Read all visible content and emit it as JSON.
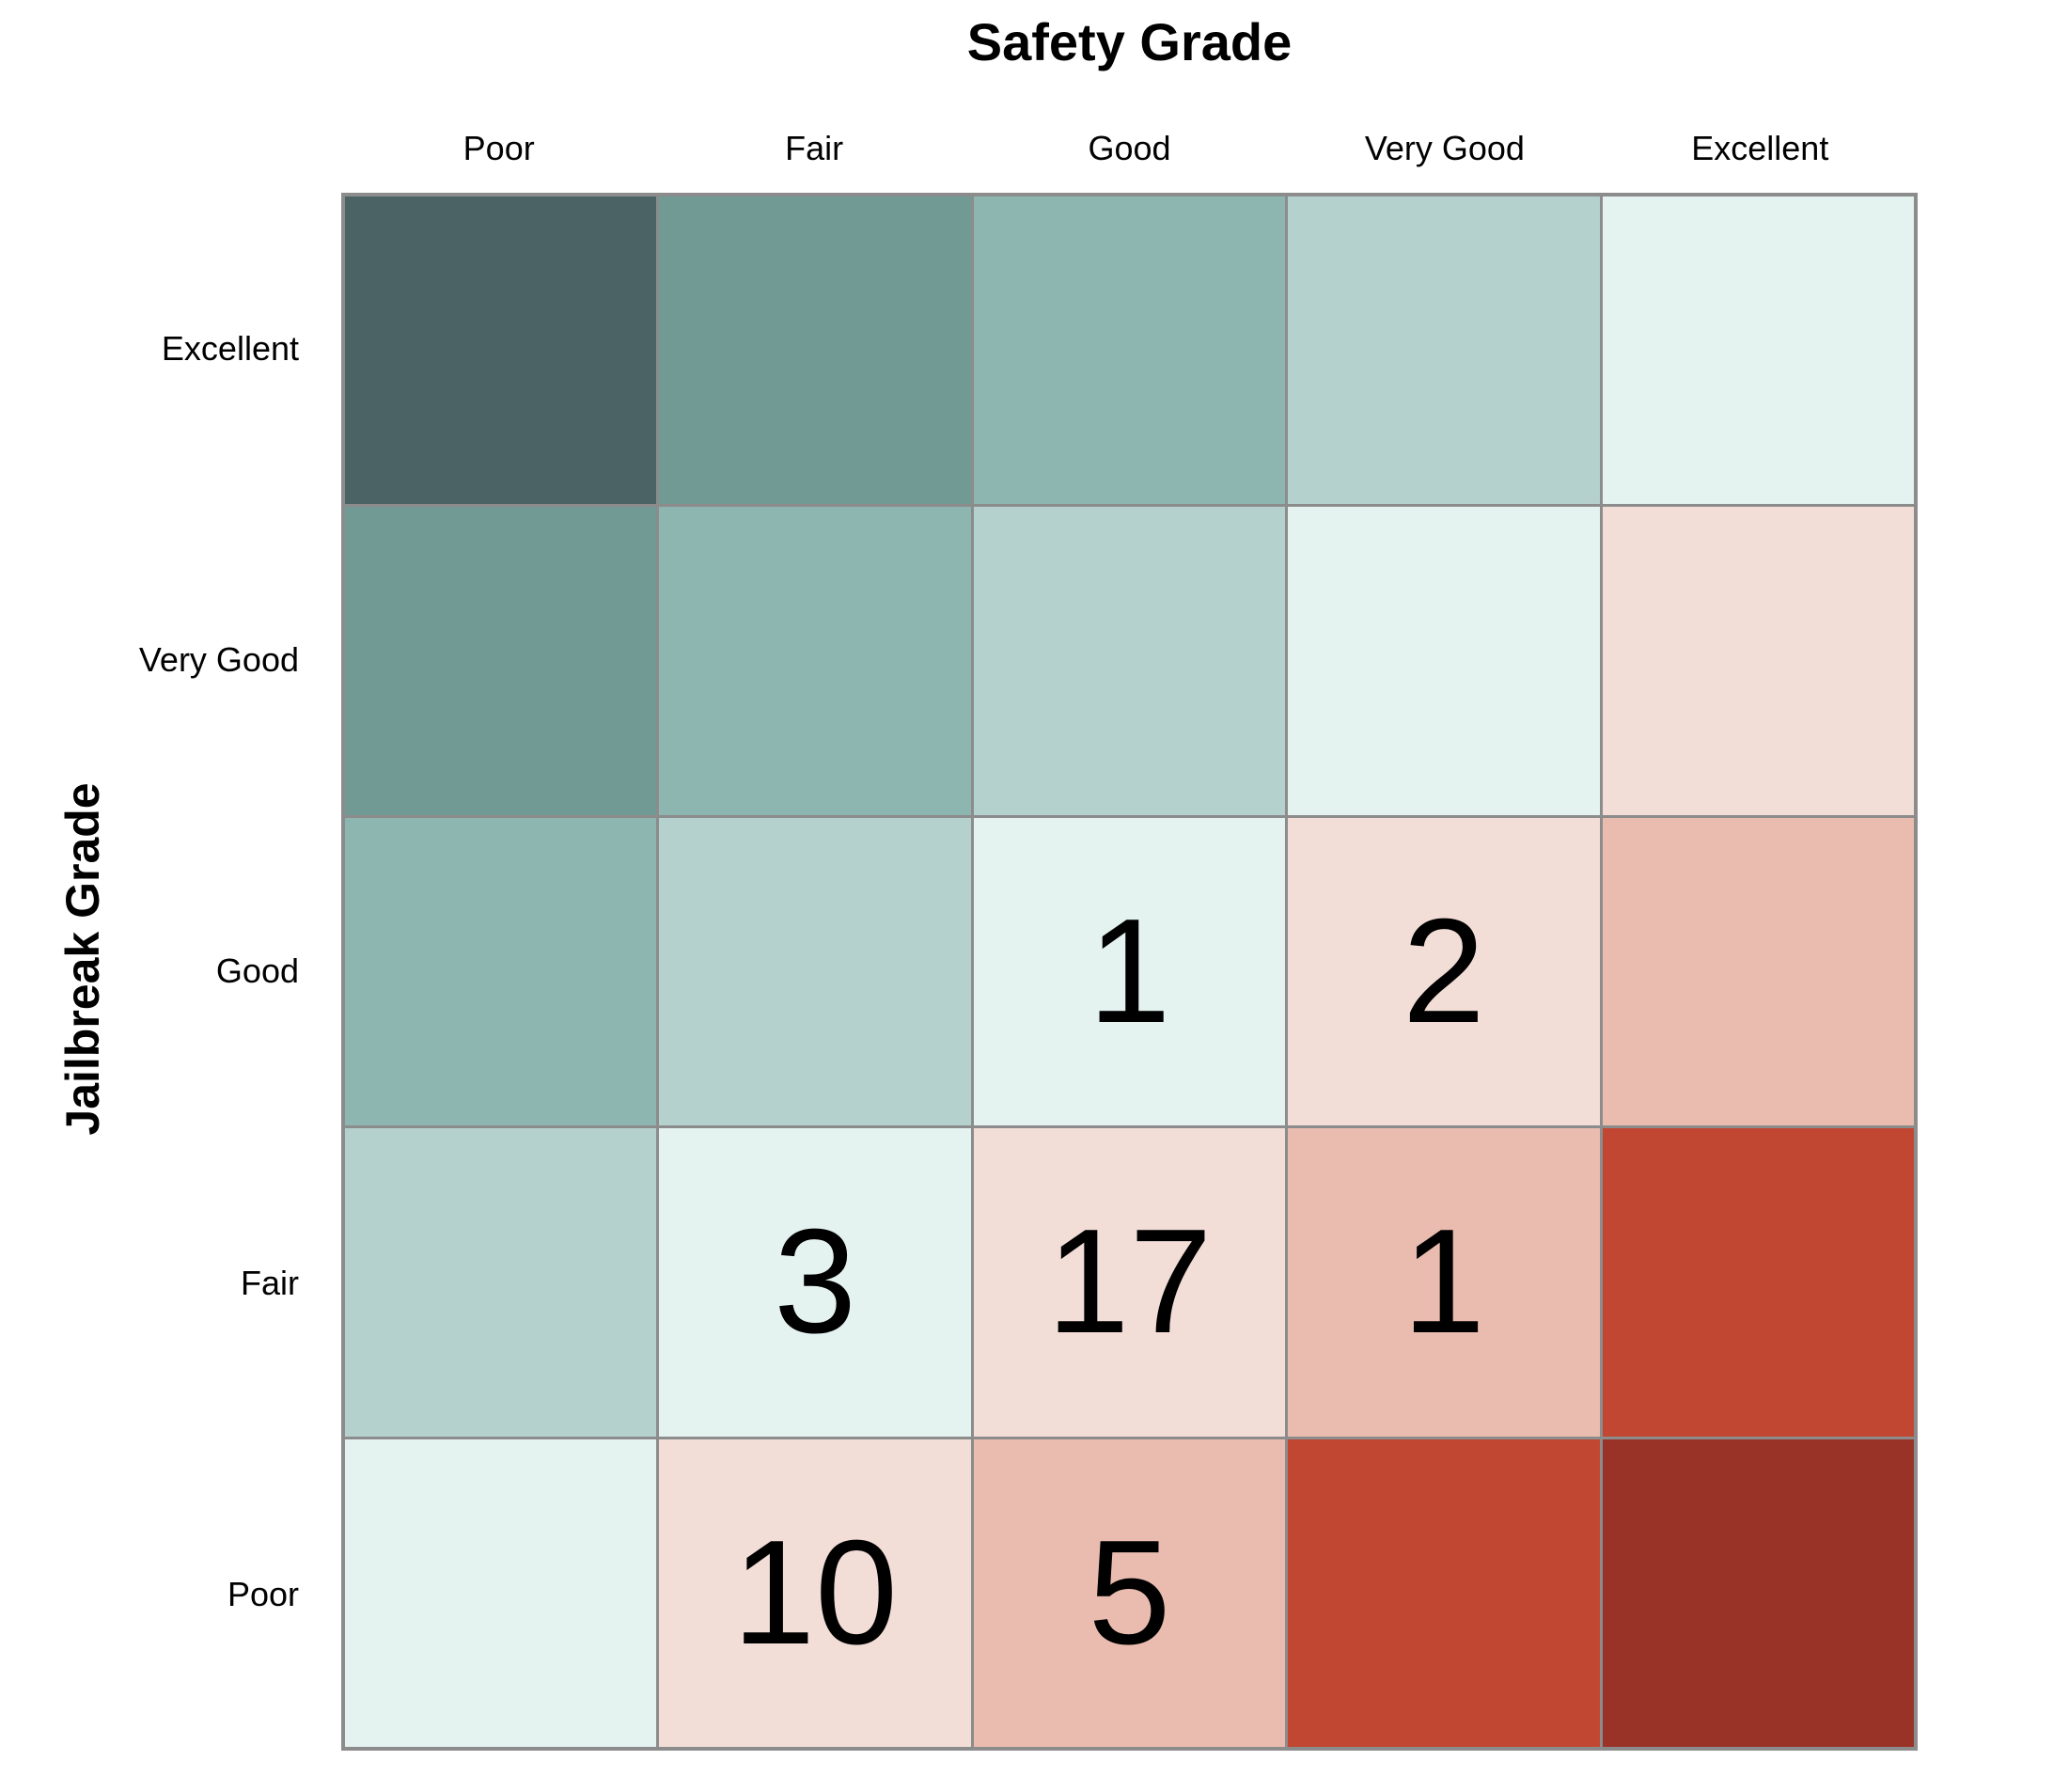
{
  "chart_data": {
    "type": "heatmap",
    "title": "Safety Grade",
    "xlabel": "Safety Grade",
    "ylabel": "Jailbreak Grade",
    "x_categories": [
      "Poor",
      "Fair",
      "Good",
      "Very Good",
      "Excellent"
    ],
    "y_categories": [
      "Excellent",
      "Very Good",
      "Good",
      "Fair",
      "Poor"
    ],
    "legend": "none",
    "grid_on": true,
    "gridline_color": "#8c8c8c",
    "palette_by_diagonal_offset": {
      "-4": "#4b6365",
      "-3": "#719a95",
      "-2": "#8db6b0",
      "-1": "#b5d1ce",
      "0": "#e4f2f0",
      "1": "#f3ded7",
      "2": "#eabcb0",
      "3": "#c14733",
      "4": "#993227"
    },
    "rows": [
      {
        "label": "Excellent",
        "cells": [
          {
            "value": null,
            "color": "#4b6365"
          },
          {
            "value": null,
            "color": "#719a95"
          },
          {
            "value": null,
            "color": "#8db6b0"
          },
          {
            "value": null,
            "color": "#b5d1ce"
          },
          {
            "value": null,
            "color": "#e4f2f0"
          }
        ]
      },
      {
        "label": "Very Good",
        "cells": [
          {
            "value": null,
            "color": "#719a95"
          },
          {
            "value": null,
            "color": "#8db6b0"
          },
          {
            "value": null,
            "color": "#b5d1ce"
          },
          {
            "value": null,
            "color": "#e4f2f0"
          },
          {
            "value": null,
            "color": "#f3ded7"
          }
        ]
      },
      {
        "label": "Good",
        "cells": [
          {
            "value": null,
            "color": "#8db6b0"
          },
          {
            "value": null,
            "color": "#b5d1ce"
          },
          {
            "value": 1,
            "color": "#e4f2f0"
          },
          {
            "value": 2,
            "color": "#f3ded7"
          },
          {
            "value": null,
            "color": "#eabcb0"
          }
        ]
      },
      {
        "label": "Fair",
        "cells": [
          {
            "value": null,
            "color": "#b5d1ce"
          },
          {
            "value": 3,
            "color": "#e4f2f0"
          },
          {
            "value": 17,
            "color": "#f3ded7"
          },
          {
            "value": 1,
            "color": "#eabcb0"
          },
          {
            "value": null,
            "color": "#c14733"
          }
        ]
      },
      {
        "label": "Poor",
        "cells": [
          {
            "value": null,
            "color": "#e4f2f0"
          },
          {
            "value": 10,
            "color": "#f3ded7"
          },
          {
            "value": 5,
            "color": "#eabcb0"
          },
          {
            "value": null,
            "color": "#c14733"
          },
          {
            "value": null,
            "color": "#993227"
          }
        ]
      }
    ]
  }
}
